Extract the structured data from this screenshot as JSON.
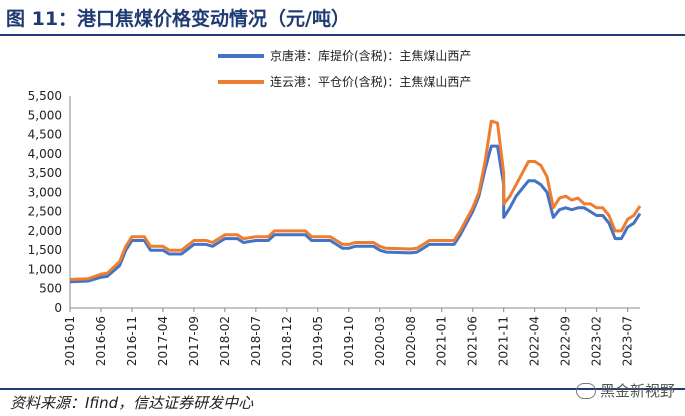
{
  "title": "图 11：港口焦煤价格变动情况（元/吨）",
  "source": "资料来源：Ifind，信达证券研发中心",
  "watermark": "黑金新视野",
  "chart_data": {
    "type": "line",
    "ylim": [
      0,
      5500
    ],
    "yticks": [
      0,
      500,
      1000,
      1500,
      2000,
      2500,
      3000,
      3500,
      4000,
      4500,
      5000,
      5500
    ],
    "ytick_labels": [
      "0",
      "500",
      "1,000",
      "1,500",
      "2,000",
      "2,500",
      "3,000",
      "3,500",
      "4,000",
      "4,500",
      "5,000",
      "5,500"
    ],
    "x_start": "2016-01",
    "x_end": "2023-09",
    "xtick_labels": [
      "2016-01",
      "2016-06",
      "2016-11",
      "2017-04",
      "2017-09",
      "2018-02",
      "2018-07",
      "2018-12",
      "2019-05",
      "2019-10",
      "2020-03",
      "2020-08",
      "2021-01",
      "2021-06",
      "2021-11",
      "2022-04",
      "2022-09",
      "2023-02",
      "2023-07"
    ],
    "series": [
      {
        "name": "京唐港：库提价(含税)：主焦煤山西产",
        "color": "#4472c4",
        "points": [
          [
            "2016-01",
            680
          ],
          [
            "2016-04",
            700
          ],
          [
            "2016-06",
            800
          ],
          [
            "2016-07",
            820
          ],
          [
            "2016-09",
            1100
          ],
          [
            "2016-10",
            1500
          ],
          [
            "2016-11",
            1750
          ],
          [
            "2016-12",
            1750
          ],
          [
            "2017-01",
            1750
          ],
          [
            "2017-02",
            1500
          ],
          [
            "2017-04",
            1500
          ],
          [
            "2017-05",
            1400
          ],
          [
            "2017-07",
            1400
          ],
          [
            "2017-09",
            1650
          ],
          [
            "2017-11",
            1650
          ],
          [
            "2017-12",
            1600
          ],
          [
            "2018-02",
            1800
          ],
          [
            "2018-04",
            1800
          ],
          [
            "2018-05",
            1700
          ],
          [
            "2018-07",
            1750
          ],
          [
            "2018-09",
            1750
          ],
          [
            "2018-10",
            1900
          ],
          [
            "2018-12",
            1900
          ],
          [
            "2019-03",
            1900
          ],
          [
            "2019-04",
            1750
          ],
          [
            "2019-07",
            1750
          ],
          [
            "2019-08",
            1650
          ],
          [
            "2019-09",
            1550
          ],
          [
            "2019-10",
            1550
          ],
          [
            "2019-11",
            1600
          ],
          [
            "2020-02",
            1600
          ],
          [
            "2020-03",
            1500
          ],
          [
            "2020-04",
            1450
          ],
          [
            "2020-08",
            1430
          ],
          [
            "2020-09",
            1450
          ],
          [
            "2020-10",
            1550
          ],
          [
            "2020-11",
            1650
          ],
          [
            "2021-01",
            1650
          ],
          [
            "2021-03",
            1650
          ],
          [
            "2021-04",
            1900
          ],
          [
            "2021-05",
            2200
          ],
          [
            "2021-06",
            2500
          ],
          [
            "2021-07",
            2900
          ],
          [
            "2021-08",
            3600
          ],
          [
            "2021-09",
            4200
          ],
          [
            "2021-10",
            4200
          ],
          [
            "2021-11",
            3200
          ],
          [
            "2021-11",
            2350
          ],
          [
            "2021-12",
            2600
          ],
          [
            "2022-01",
            2900
          ],
          [
            "2022-02",
            3100
          ],
          [
            "2022-03",
            3300
          ],
          [
            "2022-04",
            3300
          ],
          [
            "2022-05",
            3200
          ],
          [
            "2022-06",
            3000
          ],
          [
            "2022-07",
            2350
          ],
          [
            "2022-08",
            2550
          ],
          [
            "2022-09",
            2600
          ],
          [
            "2022-10",
            2550
          ],
          [
            "2022-11",
            2600
          ],
          [
            "2022-12",
            2600
          ],
          [
            "2023-01",
            2500
          ],
          [
            "2023-02",
            2400
          ],
          [
            "2023-03",
            2400
          ],
          [
            "2023-04",
            2200
          ],
          [
            "2023-05",
            1800
          ],
          [
            "2023-06",
            1800
          ],
          [
            "2023-07",
            2100
          ],
          [
            "2023-08",
            2200
          ],
          [
            "2023-09",
            2450
          ]
        ]
      },
      {
        "name": "连云港：平仓价(含税)：主焦煤山西产",
        "color": "#ed7d31",
        "points": [
          [
            "2016-01",
            740
          ],
          [
            "2016-04",
            760
          ],
          [
            "2016-06",
            880
          ],
          [
            "2016-07",
            900
          ],
          [
            "2016-09",
            1200
          ],
          [
            "2016-10",
            1600
          ],
          [
            "2016-11",
            1850
          ],
          [
            "2016-12",
            1850
          ],
          [
            "2017-01",
            1850
          ],
          [
            "2017-02",
            1600
          ],
          [
            "2017-04",
            1600
          ],
          [
            "2017-05",
            1500
          ],
          [
            "2017-07",
            1500
          ],
          [
            "2017-09",
            1750
          ],
          [
            "2017-11",
            1750
          ],
          [
            "2017-12",
            1700
          ],
          [
            "2018-02",
            1900
          ],
          [
            "2018-04",
            1900
          ],
          [
            "2018-05",
            1800
          ],
          [
            "2018-07",
            1850
          ],
          [
            "2018-09",
            1850
          ],
          [
            "2018-10",
            2000
          ],
          [
            "2018-12",
            2000
          ],
          [
            "2019-03",
            2000
          ],
          [
            "2019-04",
            1850
          ],
          [
            "2019-07",
            1850
          ],
          [
            "2019-08",
            1750
          ],
          [
            "2019-09",
            1650
          ],
          [
            "2019-10",
            1650
          ],
          [
            "2019-11",
            1700
          ],
          [
            "2020-02",
            1700
          ],
          [
            "2020-03",
            1600
          ],
          [
            "2020-04",
            1550
          ],
          [
            "2020-08",
            1530
          ],
          [
            "2020-09",
            1550
          ],
          [
            "2020-10",
            1650
          ],
          [
            "2020-11",
            1750
          ],
          [
            "2021-01",
            1750
          ],
          [
            "2021-03",
            1750
          ],
          [
            "2021-04",
            2000
          ],
          [
            "2021-05",
            2300
          ],
          [
            "2021-06",
            2600
          ],
          [
            "2021-07",
            3000
          ],
          [
            "2021-08",
            3800
          ],
          [
            "2021-09",
            4850
          ],
          [
            "2021-10",
            4800
          ],
          [
            "2021-11",
            3500
          ],
          [
            "2021-11",
            2700
          ],
          [
            "2021-12",
            2900
          ],
          [
            "2022-01",
            3200
          ],
          [
            "2022-02",
            3500
          ],
          [
            "2022-03",
            3800
          ],
          [
            "2022-04",
            3800
          ],
          [
            "2022-05",
            3700
          ],
          [
            "2022-06",
            3400
          ],
          [
            "2022-07",
            2600
          ],
          [
            "2022-08",
            2850
          ],
          [
            "2022-09",
            2900
          ],
          [
            "2022-10",
            2800
          ],
          [
            "2022-11",
            2850
          ],
          [
            "2022-12",
            2700
          ],
          [
            "2023-01",
            2700
          ],
          [
            "2023-02",
            2600
          ],
          [
            "2023-03",
            2600
          ],
          [
            "2023-04",
            2400
          ],
          [
            "2023-05",
            2000
          ],
          [
            "2023-06",
            2000
          ],
          [
            "2023-07",
            2300
          ],
          [
            "2023-08",
            2400
          ],
          [
            "2023-09",
            2650
          ]
        ]
      }
    ],
    "grid": false,
    "legend_position": "top-right"
  }
}
